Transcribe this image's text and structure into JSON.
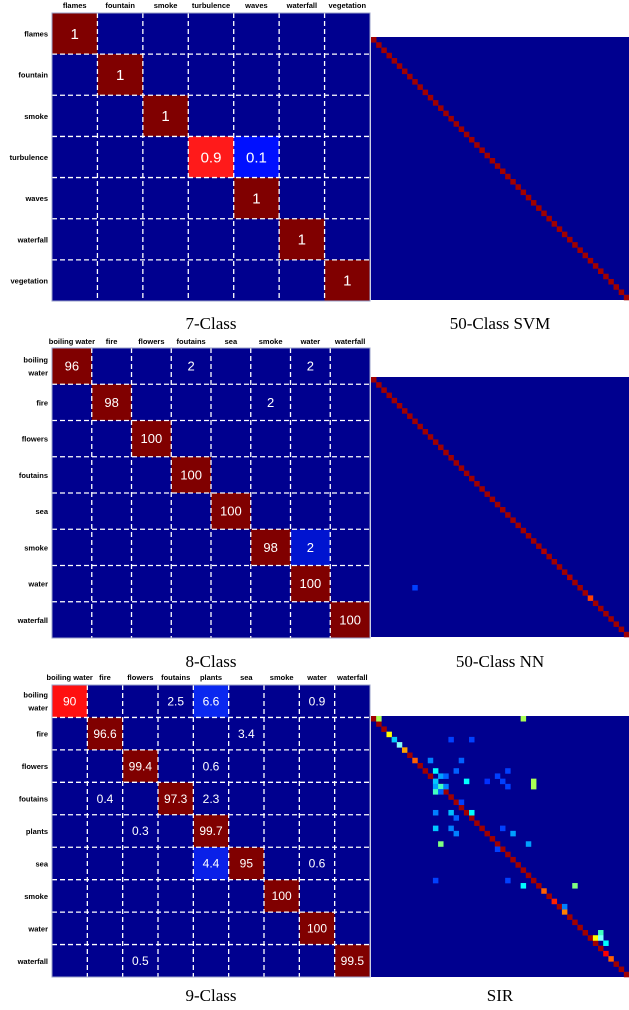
{
  "colors": {
    "background": "#00008f",
    "diagonal": "#800000",
    "grid": "#ffffff",
    "high": "#ff0000",
    "mid": "#ffff00",
    "low": "#0000ff"
  },
  "captions": {
    "seven_class": "7-Class",
    "svm50": "50-Class SVM",
    "eight_class": "8-Class",
    "nn50": "50-Class NN",
    "nine_class": "9-Class",
    "sir": "SIR"
  },
  "chart_data": [
    {
      "type": "heatmap",
      "caption": "7-Class",
      "column_labels": [
        "flames",
        "fountain",
        "smoke",
        "turbulence",
        "waves",
        "waterfall",
        "vegetation"
      ],
      "row_labels": [
        "flames",
        "fountain",
        "smoke",
        "turbulence",
        "waves",
        "waterfall",
        "vegetation"
      ],
      "cells": [
        {
          "row": 0,
          "col": 0,
          "text": "1",
          "color": "#800000"
        },
        {
          "row": 1,
          "col": 1,
          "text": "1",
          "color": "#800000"
        },
        {
          "row": 2,
          "col": 2,
          "text": "1",
          "color": "#800000"
        },
        {
          "row": 3,
          "col": 3,
          "text": "0.9",
          "color": "#ff1a1a"
        },
        {
          "row": 3,
          "col": 4,
          "text": "0.1",
          "color": "#0010ff"
        },
        {
          "row": 4,
          "col": 4,
          "text": "1",
          "color": "#800000"
        },
        {
          "row": 5,
          "col": 5,
          "text": "1",
          "color": "#800000"
        },
        {
          "row": 6,
          "col": 6,
          "text": "1",
          "color": "#800000"
        }
      ]
    },
    {
      "type": "heatmap",
      "caption": "50-Class SVM",
      "size": 50,
      "diagonal_value": 1
    },
    {
      "type": "heatmap",
      "caption": "8-Class",
      "column_labels": [
        "boiling water",
        "fire",
        "flowers",
        "foutains",
        "sea",
        "smoke",
        "water",
        "waterfall"
      ],
      "row_labels": [
        [
          "boiling",
          "water"
        ],
        [
          "fire"
        ],
        [
          "flowers"
        ],
        [
          "foutains"
        ],
        [
          "sea"
        ],
        [
          "smoke"
        ],
        [
          "water"
        ],
        [
          "waterfall"
        ]
      ],
      "cells": [
        {
          "row": 0,
          "col": 0,
          "text": "96",
          "color": "#800000"
        },
        {
          "row": 0,
          "col": 3,
          "text": "2",
          "color": ""
        },
        {
          "row": 0,
          "col": 6,
          "text": "2",
          "color": ""
        },
        {
          "row": 1,
          "col": 1,
          "text": "98",
          "color": "#800000"
        },
        {
          "row": 1,
          "col": 5,
          "text": "2",
          "color": ""
        },
        {
          "row": 2,
          "col": 2,
          "text": "100",
          "color": "#800000"
        },
        {
          "row": 3,
          "col": 3,
          "text": "100",
          "color": "#800000"
        },
        {
          "row": 4,
          "col": 4,
          "text": "100",
          "color": "#800000"
        },
        {
          "row": 5,
          "col": 5,
          "text": "98",
          "color": "#800000"
        },
        {
          "row": 5,
          "col": 6,
          "text": "2",
          "color": "#0014d0"
        },
        {
          "row": 6,
          "col": 6,
          "text": "100",
          "color": "#800000"
        },
        {
          "row": 7,
          "col": 7,
          "text": "100",
          "color": "#800000"
        }
      ]
    },
    {
      "type": "heatmap",
      "caption": "50-Class NN",
      "size": 50,
      "diagonal_value": 1,
      "diagonal_highlights": [
        {
          "index": 33,
          "color": "#b00000"
        },
        {
          "index": 38,
          "color": "#b00000"
        },
        {
          "index": 42,
          "color": "#ff4000"
        }
      ],
      "off_diagonal": [
        {
          "row": 40,
          "col": 8,
          "color": "#0040ff"
        }
      ]
    },
    {
      "type": "heatmap",
      "caption": "9-Class",
      "column_labels": [
        "boiling water",
        "fire",
        "flowers",
        "foutains",
        "plants",
        "sea",
        "smoke",
        "water",
        "waterfall"
      ],
      "row_labels": [
        [
          "boiling",
          "water"
        ],
        [
          "fire"
        ],
        [
          "flowers"
        ],
        [
          "foutains"
        ],
        [
          "plants"
        ],
        [
          "sea"
        ],
        [
          "smoke"
        ],
        [
          "water"
        ],
        [
          "waterfall"
        ]
      ],
      "cells": [
        {
          "row": 0,
          "col": 0,
          "text": "90",
          "color": "#ff1010"
        },
        {
          "row": 0,
          "col": 3,
          "text": "2.5",
          "color": ""
        },
        {
          "row": 0,
          "col": 4,
          "text": "6.6",
          "color": "#0a28f0"
        },
        {
          "row": 0,
          "col": 7,
          "text": "0.9",
          "color": ""
        },
        {
          "row": 1,
          "col": 1,
          "text": "96.6",
          "color": "#800000"
        },
        {
          "row": 1,
          "col": 5,
          "text": "3.4",
          "color": ""
        },
        {
          "row": 2,
          "col": 2,
          "text": "99.4",
          "color": "#800000"
        },
        {
          "row": 2,
          "col": 4,
          "text": "0.6",
          "color": ""
        },
        {
          "row": 3,
          "col": 1,
          "text": "0.4",
          "color": ""
        },
        {
          "row": 3,
          "col": 3,
          "text": "97.3",
          "color": "#800000"
        },
        {
          "row": 3,
          "col": 4,
          "text": "2.3",
          "color": ""
        },
        {
          "row": 4,
          "col": 2,
          "text": "0.3",
          "color": ""
        },
        {
          "row": 4,
          "col": 4,
          "text": "99.7",
          "color": "#800000"
        },
        {
          "row": 5,
          "col": 4,
          "text": "4.4",
          "color": "#0a20e8"
        },
        {
          "row": 5,
          "col": 5,
          "text": "95",
          "color": "#800000"
        },
        {
          "row": 5,
          "col": 7,
          "text": "0.6",
          "color": ""
        },
        {
          "row": 6,
          "col": 6,
          "text": "100",
          "color": "#800000"
        },
        {
          "row": 7,
          "col": 7,
          "text": "100",
          "color": "#800000"
        },
        {
          "row": 8,
          "col": 2,
          "text": "0.5",
          "color": ""
        },
        {
          "row": 8,
          "col": 8,
          "text": "99.5",
          "color": "#800000"
        }
      ]
    },
    {
      "type": "heatmap",
      "caption": "SIR",
      "size": 50,
      "diagonal_value": 1,
      "diagonal_highlights": [
        {
          "index": 3,
          "color": "#ffff00"
        },
        {
          "index": 6,
          "color": "#ffa000"
        },
        {
          "index": 8,
          "color": "#ff6000"
        },
        {
          "index": 12,
          "color": "#b00000"
        },
        {
          "index": 33,
          "color": "#ff6000"
        },
        {
          "index": 35,
          "color": "#ff2000"
        },
        {
          "index": 37,
          "color": "#ff8000"
        },
        {
          "index": 45,
          "color": "#ff0000"
        },
        {
          "index": 46,
          "color": "#ff6000"
        }
      ],
      "off_diagonal": [
        {
          "row": 0,
          "col": 1,
          "color": "#aaff55"
        },
        {
          "row": 0,
          "col": 29,
          "color": "#aaff55"
        },
        {
          "row": 4,
          "col": 4,
          "color": "#00ccff"
        },
        {
          "row": 4,
          "col": 15,
          "color": "#0040ff"
        },
        {
          "row": 4,
          "col": 19,
          "color": "#0040ff"
        },
        {
          "row": 5,
          "col": 5,
          "color": "#80ffff"
        },
        {
          "row": 8,
          "col": 11,
          "color": "#0080ff"
        },
        {
          "row": 8,
          "col": 17,
          "color": "#0060ff"
        },
        {
          "row": 10,
          "col": 12,
          "color": "#00ffff"
        },
        {
          "row": 10,
          "col": 16,
          "color": "#0060ff"
        },
        {
          "row": 10,
          "col": 26,
          "color": "#0040ff"
        },
        {
          "row": 11,
          "col": 13,
          "color": "#00a0ff"
        },
        {
          "row": 11,
          "col": 14,
          "color": "#0060ff"
        },
        {
          "row": 11,
          "col": 24,
          "color": "#0040ff"
        },
        {
          "row": 12,
          "col": 12,
          "color": "#00c8ff"
        },
        {
          "row": 12,
          "col": 18,
          "color": "#00ffff"
        },
        {
          "row": 12,
          "col": 22,
          "color": "#0030ff"
        },
        {
          "row": 12,
          "col": 25,
          "color": "#0040ff"
        },
        {
          "row": 12,
          "col": 31,
          "color": "#aaff55"
        },
        {
          "row": 13,
          "col": 12,
          "color": "#00a0ff"
        },
        {
          "row": 13,
          "col": 13,
          "color": "#40ffc0"
        },
        {
          "row": 13,
          "col": 14,
          "color": "#0080ff"
        },
        {
          "row": 13,
          "col": 26,
          "color": "#0040ff"
        },
        {
          "row": 13,
          "col": 31,
          "color": "#aaff55"
        },
        {
          "row": 14,
          "col": 12,
          "color": "#40ffc0"
        },
        {
          "row": 14,
          "col": 13,
          "color": "#0060ff"
        },
        {
          "row": 16,
          "col": 17,
          "color": "#0040ff"
        },
        {
          "row": 18,
          "col": 12,
          "color": "#0080ff"
        },
        {
          "row": 18,
          "col": 15,
          "color": "#00c0ff"
        },
        {
          "row": 18,
          "col": 19,
          "color": "#00ffff"
        },
        {
          "row": 19,
          "col": 16,
          "color": "#0060ff"
        },
        {
          "row": 21,
          "col": 12,
          "color": "#00c8ff"
        },
        {
          "row": 21,
          "col": 15,
          "color": "#0080ff"
        },
        {
          "row": 21,
          "col": 25,
          "color": "#0040ff"
        },
        {
          "row": 22,
          "col": 16,
          "color": "#0080ff"
        },
        {
          "row": 22,
          "col": 27,
          "color": "#00a0ff"
        },
        {
          "row": 24,
          "col": 13,
          "color": "#80ff80"
        },
        {
          "row": 24,
          "col": 30,
          "color": "#00a0ff"
        },
        {
          "row": 25,
          "col": 24,
          "color": "#0040ff"
        },
        {
          "row": 31,
          "col": 12,
          "color": "#0040ff"
        },
        {
          "row": 31,
          "col": 26,
          "color": "#0040ff"
        },
        {
          "row": 32,
          "col": 29,
          "color": "#00ffff"
        },
        {
          "row": 32,
          "col": 39,
          "color": "#80ff80"
        },
        {
          "row": 36,
          "col": 37,
          "color": "#0080ff"
        },
        {
          "row": 41,
          "col": 44,
          "color": "#40ffc0"
        },
        {
          "row": 42,
          "col": 43,
          "color": "#ffff00"
        },
        {
          "row": 42,
          "col": 44,
          "color": "#80ffff"
        },
        {
          "row": 43,
          "col": 45,
          "color": "#00ffff"
        }
      ]
    }
  ]
}
